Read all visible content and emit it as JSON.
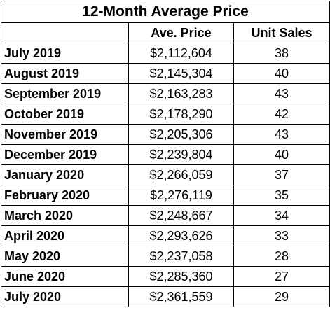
{
  "table": {
    "title": "12-Month Average Price",
    "headers": [
      "",
      "Ave. Price",
      "Unit Sales"
    ],
    "rows": [
      {
        "month": "July 2019",
        "price": "$2,112,604",
        "sales": "38"
      },
      {
        "month": "August 2019",
        "price": "$2,145,304",
        "sales": "40"
      },
      {
        "month": "September 2019",
        "price": "$2,163,283",
        "sales": "43"
      },
      {
        "month": "October 2019",
        "price": "$2,178,290",
        "sales": "42"
      },
      {
        "month": "November 2019",
        "price": "$2,205,306",
        "sales": "43"
      },
      {
        "month": "December 2019",
        "price": "$2,239,804",
        "sales": "40"
      },
      {
        "month": "January 2020",
        "price": "$2,266,059",
        "sales": "37"
      },
      {
        "month": "February 2020",
        "price": "$2,276,119",
        "sales": "35"
      },
      {
        "month": "March 2020",
        "price": "$2,248,667",
        "sales": "34"
      },
      {
        "month": "April 2020",
        "price": "$2,293,626",
        "sales": "33"
      },
      {
        "month": "May 2020",
        "price": "$2,237,058",
        "sales": "28"
      },
      {
        "month": "June 2020",
        "price": "$2,285,360",
        "sales": "27"
      },
      {
        "month": "July 2020",
        "price": "$2,361,559",
        "sales": "29"
      }
    ]
  }
}
